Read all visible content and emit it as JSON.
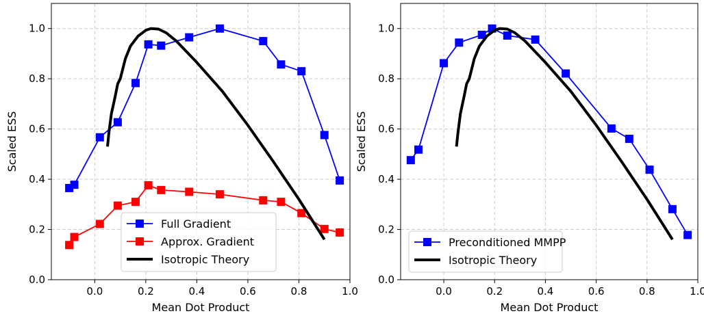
{
  "chart_data": [
    {
      "type": "line",
      "xlabel": "Mean Dot Product",
      "ylabel": "Scaled ESS",
      "xlim": [
        -0.17,
        1.0
      ],
      "ylim": [
        0.0,
        1.1
      ],
      "xticks": [
        "0.0",
        "0.2",
        "0.4",
        "0.6",
        "0.8",
        "1.0"
      ],
      "yticks": [
        "0.0",
        "0.2",
        "0.4",
        "0.6",
        "0.8",
        "1.0"
      ],
      "grid": true,
      "legend_position": "lower-center",
      "series": [
        {
          "name": "Full Gradient",
          "color": "#0000ff",
          "marker": "square",
          "x": [
            -0.1,
            -0.08,
            0.02,
            0.09,
            0.16,
            0.21,
            0.26,
            0.37,
            0.49,
            0.66,
            0.73,
            0.81,
            0.9,
            0.96
          ],
          "y": [
            0.365,
            0.378,
            0.567,
            0.627,
            0.783,
            0.937,
            0.932,
            0.965,
            1.0,
            0.95,
            0.857,
            0.83,
            0.576,
            0.395
          ]
        },
        {
          "name": "Approx. Gradient",
          "color": "#ff0000",
          "marker": "square",
          "x": [
            -0.1,
            -0.08,
            0.02,
            0.09,
            0.16,
            0.21,
            0.26,
            0.37,
            0.49,
            0.66,
            0.73,
            0.81,
            0.9,
            0.96
          ],
          "y": [
            0.138,
            0.17,
            0.222,
            0.295,
            0.31,
            0.376,
            0.357,
            0.35,
            0.34,
            0.316,
            0.31,
            0.265,
            0.202,
            0.188
          ]
        },
        {
          "name": "Isotropic Theory",
          "color": "#000000",
          "marker": "none",
          "x": [
            0.05,
            0.055,
            0.065,
            0.08,
            0.09,
            0.1,
            0.12,
            0.14,
            0.17,
            0.2,
            0.22,
            0.25,
            0.28,
            0.32,
            0.4,
            0.5,
            0.6,
            0.7,
            0.8,
            0.9
          ],
          "y": [
            0.53,
            0.58,
            0.66,
            0.73,
            0.78,
            0.8,
            0.88,
            0.93,
            0.97,
            0.993,
            1.0,
            0.998,
            0.983,
            0.95,
            0.865,
            0.75,
            0.615,
            0.47,
            0.32,
            0.16
          ]
        }
      ]
    },
    {
      "type": "line",
      "xlabel": "Mean Dot Product",
      "ylabel": "Scaled ESS",
      "xlim": [
        -0.17,
        1.0
      ],
      "ylim": [
        0.0,
        1.1
      ],
      "xticks": [
        "0.0",
        "0.2",
        "0.4",
        "0.6",
        "0.8",
        "1.0"
      ],
      "yticks": [
        "0.0",
        "0.2",
        "0.4",
        "0.6",
        "0.8",
        "1.0"
      ],
      "grid": true,
      "legend_position": "lower-left",
      "series": [
        {
          "name": "Preconditioned MMPP",
          "color": "#0000ff",
          "marker": "square",
          "x": [
            -0.13,
            -0.1,
            0.0,
            0.06,
            0.15,
            0.19,
            0.25,
            0.36,
            0.48,
            0.66,
            0.73,
            0.81,
            0.9,
            0.96
          ],
          "y": [
            0.476,
            0.518,
            0.862,
            0.944,
            0.975,
            1.0,
            0.972,
            0.956,
            0.821,
            0.602,
            0.561,
            0.438,
            0.281,
            0.178
          ]
        },
        {
          "name": "Isotropic Theory",
          "color": "#000000",
          "marker": "none",
          "x": [
            0.05,
            0.055,
            0.065,
            0.08,
            0.09,
            0.1,
            0.12,
            0.14,
            0.17,
            0.2,
            0.22,
            0.25,
            0.28,
            0.32,
            0.4,
            0.5,
            0.6,
            0.7,
            0.8,
            0.9
          ],
          "y": [
            0.53,
            0.58,
            0.66,
            0.73,
            0.78,
            0.8,
            0.88,
            0.93,
            0.97,
            0.993,
            1.0,
            0.998,
            0.983,
            0.95,
            0.865,
            0.75,
            0.615,
            0.47,
            0.32,
            0.16
          ]
        }
      ]
    }
  ]
}
